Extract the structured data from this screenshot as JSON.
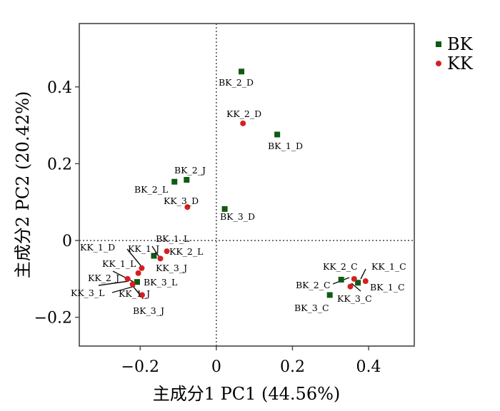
{
  "chart_data": {
    "type": "scatter",
    "xlabel": "主成分1 PC1 (44.56%)",
    "ylabel": "主成分2 PC2 (20.42%)",
    "xlim": [
      -0.36,
      0.52
    ],
    "ylim": [
      -0.275,
      0.565
    ],
    "x_ticks": [
      -0.2,
      0,
      0.2,
      0.4
    ],
    "x_tick_labels": [
      "−0.2",
      "0",
      "0.2",
      "0.4"
    ],
    "y_ticks": [
      -0.2,
      0,
      0.2,
      0.4
    ],
    "y_tick_labels": [
      "−0.2",
      "0",
      "0.2",
      "0.4"
    ],
    "reference_lines": {
      "x": 0,
      "y": 0,
      "style": "dotted"
    },
    "legend": {
      "position": "top-right",
      "entries": [
        "BK",
        "KK"
      ]
    },
    "series": [
      {
        "name": "BK",
        "color": "#0f5a14",
        "marker": "square",
        "points": [
          {
            "label": "BK_2_D",
            "x": 0.066,
            "y": 0.44
          },
          {
            "label": "BK_1_D",
            "x": 0.16,
            "y": 0.276
          },
          {
            "label": "BK_2_J",
            "x": -0.078,
            "y": 0.158
          },
          {
            "label": "BK_2_L",
            "x": -0.11,
            "y": 0.153
          },
          {
            "label": "BK_3_D",
            "x": 0.022,
            "y": 0.082
          },
          {
            "label": "BK_1_L",
            "x": -0.164,
            "y": -0.04
          },
          {
            "label": "BK_3_L",
            "x": -0.208,
            "y": -0.108
          },
          {
            "label": "BK_2_C",
            "x": 0.328,
            "y": -0.102
          },
          {
            "label": "BK_1_C",
            "x": 0.372,
            "y": -0.11
          },
          {
            "label": "BK_3_C",
            "x": 0.298,
            "y": -0.142
          }
        ]
      },
      {
        "name": "KK",
        "color": "#d42020",
        "marker": "circle",
        "points": [
          {
            "label": "KK_2_D",
            "x": 0.07,
            "y": 0.305
          },
          {
            "label": "KK_3_D",
            "x": -0.076,
            "y": 0.087
          },
          {
            "label": "KK_1_D",
            "x": -0.196,
            "y": -0.072
          },
          {
            "label": "KK_2_L",
            "x": -0.13,
            "y": -0.028
          },
          {
            "label": "KK_3_J",
            "x": -0.147,
            "y": -0.047
          },
          {
            "label": "KK_1_L",
            "x": -0.205,
            "y": -0.085
          },
          {
            "label": "KK_2_J",
            "x": -0.233,
            "y": -0.1
          },
          {
            "label": "KK_3_L",
            "x": -0.22,
            "y": -0.114
          },
          {
            "label": "KK_1_J",
            "x": -0.195,
            "y": -0.142
          },
          {
            "label": "KK_2_C",
            "x": 0.362,
            "y": -0.1
          },
          {
            "label": "KK_1_C",
            "x": 0.392,
            "y": -0.106
          },
          {
            "label": "KK_3_C",
            "x": 0.352,
            "y": -0.12
          }
        ]
      }
    ],
    "extra_labels": [
      "BK_3_J"
    ]
  }
}
